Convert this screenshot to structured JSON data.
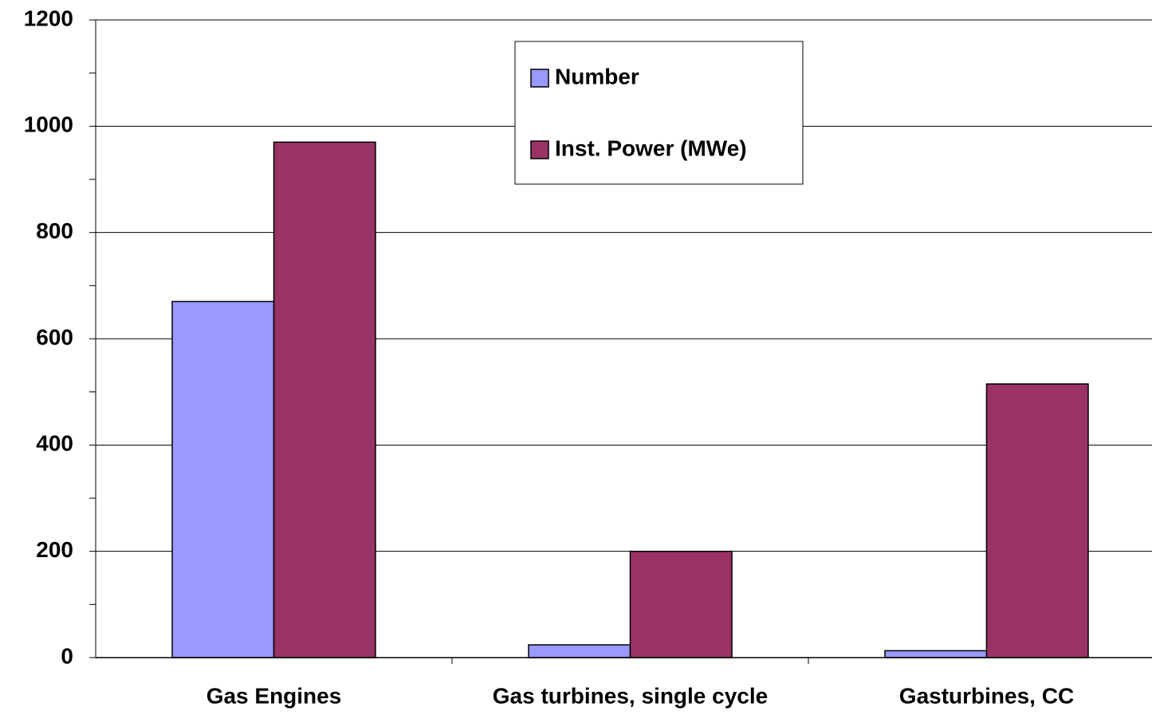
{
  "chart_data": {
    "type": "bar",
    "categories": [
      "Gas Engines",
      "Gas turbines, single cycle",
      "Gasturbines, CC"
    ],
    "series": [
      {
        "name": "Number",
        "color": "#9999ff",
        "values": [
          670,
          24,
          13
        ]
      },
      {
        "name": "Inst. Power (MWe)",
        "color": "#993366",
        "values": [
          970,
          200,
          515
        ]
      }
    ],
    "ylim": [
      0,
      1200
    ],
    "yticks": [
      0,
      200,
      400,
      600,
      800,
      1000,
      1200
    ],
    "minor_yticks": [
      100,
      300,
      500,
      700,
      900,
      1100
    ],
    "grid": true,
    "legend": "top"
  }
}
